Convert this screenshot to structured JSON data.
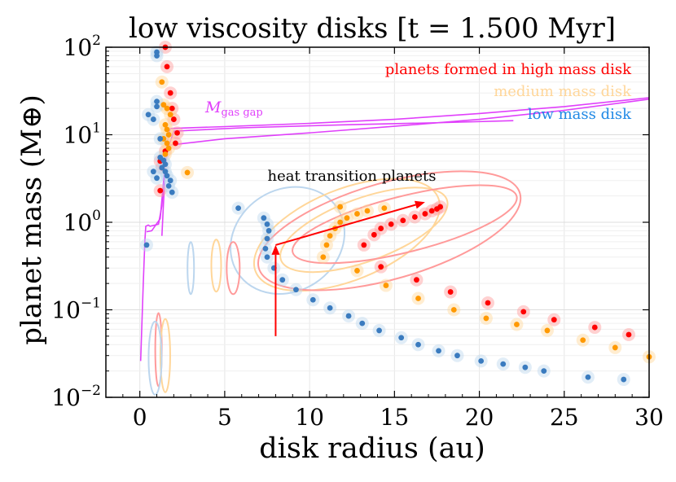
{
  "chart_data": {
    "type": "scatter",
    "title": "low viscosity disks [t = 1.500 Myr]",
    "xlabel": "disk radius (au)",
    "ylabel": "planet mass (M⊕)",
    "xlim": [
      -2,
      30
    ],
    "ylim_log10": [
      -2,
      2
    ],
    "x_ticks": [
      0,
      5,
      10,
      15,
      20,
      25,
      30
    ],
    "x_tick_labels": [
      "0",
      "5",
      "10",
      "15",
      "20",
      "25",
      "30"
    ],
    "y_ticks_log10": [
      -2,
      -1,
      0,
      1,
      2
    ],
    "y_tick_labels": [
      {
        "base": "10",
        "exp": "−2"
      },
      {
        "base": "10",
        "exp": "−1"
      },
      {
        "base": "10",
        "exp": "0"
      },
      {
        "base": "10",
        "exp": "1"
      },
      {
        "base": "10",
        "exp": "2"
      }
    ],
    "grid": true,
    "legend": {
      "placement": "top-right",
      "entries": [
        {
          "label": "planets formed in high mass disk",
          "color": "#ff0000"
        },
        {
          "label": "medium mass disk",
          "color": "#ffd699"
        },
        {
          "label": "low mass disk",
          "color": "#1e88e5"
        }
      ]
    },
    "annotations": {
      "gas_gap_label": {
        "main": "M",
        "sub": "gas gap",
        "color": "#e040fb"
      },
      "heat_transition_label": "heat transition planets"
    },
    "series": [
      {
        "name": "high mass disk",
        "color": "#ff0000",
        "halo": "#ff9a9a",
        "points": [
          [
            1.5,
            100
          ],
          [
            1.6,
            60
          ],
          [
            1.8,
            30
          ],
          [
            1.9,
            20
          ],
          [
            2.0,
            15
          ],
          [
            2.2,
            10.5
          ],
          [
            2.1,
            8
          ],
          [
            1.5,
            6.5
          ],
          [
            1.2,
            5
          ],
          [
            1.3,
            4.2
          ],
          [
            1.2,
            2.3
          ],
          [
            13.2,
            0.55
          ],
          [
            13.8,
            0.72
          ],
          [
            14.2,
            0.85
          ],
          [
            14.8,
            0.95
          ],
          [
            15.5,
            1.05
          ],
          [
            16.2,
            1.15
          ],
          [
            16.8,
            1.25
          ],
          [
            17.2,
            1.35
          ],
          [
            17.5,
            1.42
          ],
          [
            17.7,
            1.5
          ],
          [
            14.2,
            0.31
          ],
          [
            16.3,
            0.22
          ],
          [
            18.3,
            0.16
          ],
          [
            20.5,
            0.12
          ],
          [
            22.6,
            0.095
          ],
          [
            24.4,
            0.077
          ],
          [
            26.8,
            0.063
          ],
          [
            28.8,
            0.052
          ]
        ]
      },
      {
        "name": "medium mass disk",
        "color": "#ff9900",
        "halo": "#ffd699",
        "points": [
          [
            1.3,
            40
          ],
          [
            1.4,
            22
          ],
          [
            1.6,
            20
          ],
          [
            1.8,
            17
          ],
          [
            1.5,
            13
          ],
          [
            1.6,
            11.5
          ],
          [
            1.7,
            10
          ],
          [
            1.4,
            9
          ],
          [
            1.6,
            8
          ],
          [
            1.7,
            7
          ],
          [
            1.5,
            6
          ],
          [
            2.8,
            3.7
          ],
          [
            10.8,
            0.4
          ],
          [
            11.0,
            0.55
          ],
          [
            11.2,
            0.7
          ],
          [
            11.5,
            0.85
          ],
          [
            11.8,
            1.0
          ],
          [
            12.2,
            1.12
          ],
          [
            12.8,
            1.25
          ],
          [
            13.4,
            1.35
          ],
          [
            14.4,
            1.45
          ],
          [
            11.8,
            1.5
          ],
          [
            12.8,
            0.28
          ],
          [
            14.5,
            0.19
          ],
          [
            16.4,
            0.135
          ],
          [
            18.5,
            0.1
          ],
          [
            20.4,
            0.08
          ],
          [
            22.2,
            0.068
          ],
          [
            24.0,
            0.058
          ],
          [
            26.1,
            0.045
          ],
          [
            28.0,
            0.037
          ],
          [
            30,
            0.029
          ]
        ]
      },
      {
        "name": "low mass disk",
        "color": "#3a7bbf",
        "halo": "#bcd6ee",
        "points": [
          [
            1.0,
            88
          ],
          [
            1.0,
            80
          ],
          [
            1.0,
            24
          ],
          [
            1.0,
            21
          ],
          [
            0.8,
            15
          ],
          [
            0.5,
            17
          ],
          [
            1.2,
            9
          ],
          [
            1.2,
            5.5
          ],
          [
            1.4,
            5.1
          ],
          [
            1.5,
            4.6
          ],
          [
            1.3,
            4.2
          ],
          [
            1.5,
            3.8
          ],
          [
            1.6,
            3.4
          ],
          [
            1.8,
            3.0
          ],
          [
            1.7,
            2.6
          ],
          [
            1.9,
            2.2
          ],
          [
            0.8,
            3.8
          ],
          [
            1.0,
            3.2
          ],
          [
            0.4,
            0.55
          ],
          [
            5.8,
            1.45
          ],
          [
            7.3,
            1.12
          ],
          [
            7.5,
            0.95
          ],
          [
            7.6,
            0.8
          ],
          [
            7.5,
            0.65
          ],
          [
            7.4,
            0.5
          ],
          [
            7.5,
            0.4
          ],
          [
            7.9,
            0.3
          ],
          [
            8.4,
            0.22
          ],
          [
            9.2,
            0.17
          ],
          [
            10.2,
            0.13
          ],
          [
            11.2,
            0.105
          ],
          [
            12.3,
            0.085
          ],
          [
            13.1,
            0.07
          ],
          [
            14.1,
            0.058
          ],
          [
            15.4,
            0.048
          ],
          [
            16.4,
            0.04
          ],
          [
            17.6,
            0.034
          ],
          [
            18.7,
            0.03
          ],
          [
            20.1,
            0.026
          ],
          [
            21.4,
            0.024
          ],
          [
            22.7,
            0.022
          ],
          [
            23.8,
            0.02
          ],
          [
            26.4,
            0.017
          ],
          [
            28.5,
            0.016
          ]
        ]
      }
    ],
    "gas_gap_curve": {
      "name": "M gas gap",
      "color": "#e040fb",
      "segments": [
        [
          [
            0.05,
            0.026
          ],
          [
            0.2,
            0.2
          ],
          [
            0.3,
            0.62
          ],
          [
            0.35,
            0.9
          ],
          [
            0.5,
            0.93
          ],
          [
            0.6,
            0.9
          ],
          [
            1.1,
            0.95
          ],
          [
            1.3,
            1.55
          ],
          [
            1.5,
            5.5
          ],
          [
            1.6,
            8.0
          ],
          [
            1.8,
            11.8
          ],
          [
            5,
            12.4
          ],
          [
            10,
            13.5
          ],
          [
            15,
            15
          ],
          [
            20,
            17.5
          ],
          [
            25,
            21
          ],
          [
            30,
            26.5
          ]
        ],
        [
          [
            1.3,
            0.7
          ],
          [
            1.5,
            4.5
          ],
          [
            1.7,
            7.6
          ],
          [
            5,
            9
          ],
          [
            10,
            10.5
          ],
          [
            15,
            12.5
          ],
          [
            20,
            15
          ],
          [
            25,
            19
          ],
          [
            30,
            25.5
          ]
        ],
        [
          [
            0.4,
            0.78
          ],
          [
            0.7,
            0.8
          ],
          [
            1.2,
            1.1
          ],
          [
            1.4,
            3.0
          ],
          [
            1.6,
            6.5
          ],
          [
            2,
            11
          ],
          [
            6,
            12
          ],
          [
            12,
            13
          ],
          [
            18,
            13.8
          ],
          [
            22,
            14.5
          ]
        ]
      ]
    },
    "contours": [
      {
        "series": "low mass disk",
        "color": "#bcd6ee",
        "center": [
          8.7,
          0.62
        ],
        "semi_x": 3.5,
        "semi_log": 0.58,
        "angle_deg": -33
      },
      {
        "series": "medium mass disk",
        "color": "#ffd699",
        "center": [
          12.2,
          0.72
        ],
        "semi_x": 5.8,
        "semi_log": 0.52,
        "angle_deg": -22
      },
      {
        "series": "high mass disk",
        "color": "#ff9a9a",
        "center": [
          14.7,
          0.8
        ],
        "semi_x": 8.0,
        "semi_log": 0.55,
        "angle_deg": -16
      },
      {
        "series": "medium mass disk",
        "color": "#ffd699",
        "center": [
          13.2,
          0.82
        ],
        "semi_x": 5.2,
        "semi_log": 0.36,
        "angle_deg": -20
      },
      {
        "series": "high mass disk",
        "color": "#ff9a9a",
        "center": [
          15.6,
          0.95
        ],
        "semi_x": 6.8,
        "semi_log": 0.32,
        "angle_deg": -14
      }
    ],
    "arrows": [
      {
        "from": [
          8.0,
          0.05
        ],
        "to": [
          8.0,
          0.55
        ],
        "color": "#ff0000"
      },
      {
        "from": [
          8.0,
          0.55
        ],
        "to": [
          16.8,
          1.7
        ],
        "color": "#ff0000"
      }
    ]
  }
}
